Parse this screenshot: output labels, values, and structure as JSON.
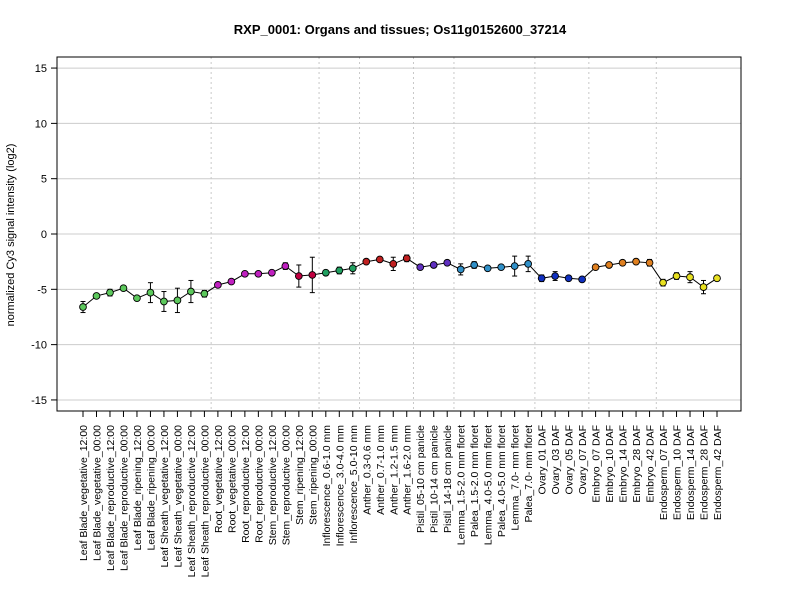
{
  "chart_data": {
    "type": "line",
    "title": "RXP_0001: Organs and tissues; Os11g0152600_37214",
    "ylabel": "normalized Cy3 signal intensity (log2)",
    "xlabel": "",
    "ylim": [
      -16,
      16
    ],
    "yticks": [
      -15,
      -10,
      -5,
      0,
      5,
      10,
      15
    ],
    "grid": true,
    "categories": [
      "Leaf Blade_vegetative_12:00",
      "Leaf Blade_vegetative_00:00",
      "Leaf Blade_reproductive_12:00",
      "Leaf Blade_reproductive_00:00",
      "Leaf Blade_ripening_12:00",
      "Leaf Blade_ripening_00:00",
      "Leaf Sheath_vegetative_12:00",
      "Leaf Sheath_vegetative_00:00",
      "Leaf Sheath_reproductive_12:00",
      "Leaf Sheath_reproductive_00:00",
      "Root_vegetative_12:00",
      "Root_vegetative_00:00",
      "Root_reproductive_12:00",
      "Root_reproductive_00:00",
      "Stem_reproductive_12:00",
      "Stem_reproductive_00:00",
      "Stem_ripening_12:00",
      "Stem_ripening_00:00",
      "Inflorescence_0.6-1.0 mm",
      "Inflorescence_3.0-4.0 mm",
      "Inflorescence_5.0-10 mm",
      "Anther_0.3-0.6 mm",
      "Anther_0.7-1.0 mm",
      "Anther_1.2-1.5 mm",
      "Anther_1.6-2.0 mm",
      "Pistil_05-10 cm panicle",
      "Pistil_10-14 cm panicle",
      "Pistil_14-18 cm panicle",
      "Lemma_1.5-2.0 mm floret",
      "Palea_1.5-2.0 mm floret",
      "Lemma_4.0-5.0 mm floret",
      "Palea_4.0-5.0 mm floret",
      "Lemma_7.0- mm floret",
      "Palea_7.0- mm floret",
      "Ovary_01 DAF",
      "Ovary_03 DAF",
      "Ovary_05 DAF",
      "Ovary_07 DAF",
      "Embryo_07 DAF",
      "Embryo_10 DAF",
      "Embryo_14 DAF",
      "Embryo_28 DAF",
      "Embryo_42 DAF",
      "Endosperm_07 DAF",
      "Endosperm_10 DAF",
      "Endosperm_14 DAF",
      "Endosperm_28 DAF",
      "Endosperm_42 DAF"
    ],
    "values": [
      -6.6,
      -5.6,
      -5.3,
      -4.9,
      -5.8,
      -5.3,
      -6.1,
      -6.0,
      -5.2,
      -5.4,
      -4.6,
      -4.3,
      -3.6,
      -3.6,
      -3.5,
      -2.9,
      -3.8,
      -3.7,
      -3.5,
      -3.3,
      -3.1,
      -2.5,
      -2.3,
      -2.7,
      -2.2,
      -3.0,
      -2.8,
      -2.6,
      -3.2,
      -2.8,
      -3.1,
      -3.0,
      -2.9,
      -2.7,
      -4.0,
      -3.8,
      -4.0,
      -4.1,
      -3.0,
      -2.8,
      -2.6,
      -2.5,
      -2.6,
      -4.4,
      -3.8,
      -3.9,
      -4.8,
      -4.0
    ],
    "error": [
      0.5,
      0.2,
      0.3,
      0.2,
      0.2,
      0.9,
      0.9,
      1.1,
      1.0,
      0.3,
      0.2,
      0.2,
      0.2,
      0.2,
      0.1,
      0.3,
      1.0,
      1.6,
      0.2,
      0.3,
      0.5,
      0.2,
      0.1,
      0.6,
      0.3,
      0.2,
      0.2,
      0.2,
      0.5,
      0.3,
      0.2,
      0.2,
      0.9,
      0.7,
      0.3,
      0.4,
      0.2,
      0.2,
      0.2,
      0.2,
      0.2,
      0.2,
      0.3,
      0.3,
      0.3,
      0.5,
      0.6,
      0.2
    ],
    "point_colors": [
      "#5cc85c",
      "#5cc85c",
      "#5cc85c",
      "#5cc85c",
      "#5cc85c",
      "#5cc85c",
      "#5cc85c",
      "#5cc85c",
      "#5cc85c",
      "#5cc85c",
      "#c020c0",
      "#c020c0",
      "#c020c0",
      "#c020c0",
      "#c020c0",
      "#c020c0",
      "#c00040",
      "#c00040",
      "#20a060",
      "#20a060",
      "#20a060",
      "#c02020",
      "#c02020",
      "#c02020",
      "#c02020",
      "#6030c0",
      "#6030c0",
      "#6030c0",
      "#3090c8",
      "#3090c8",
      "#3090c8",
      "#3090c8",
      "#3090c8",
      "#3090c8",
      "#1030c0",
      "#1030c0",
      "#1030c0",
      "#1030c0",
      "#e08020",
      "#e08020",
      "#e08020",
      "#e08020",
      "#e08020",
      "#e8e020",
      "#e8e020",
      "#e8e020",
      "#e8e020",
      "#e8e020"
    ],
    "group_boundaries_after_index": [
      9,
      17,
      20,
      24,
      27,
      33,
      37,
      42
    ]
  }
}
